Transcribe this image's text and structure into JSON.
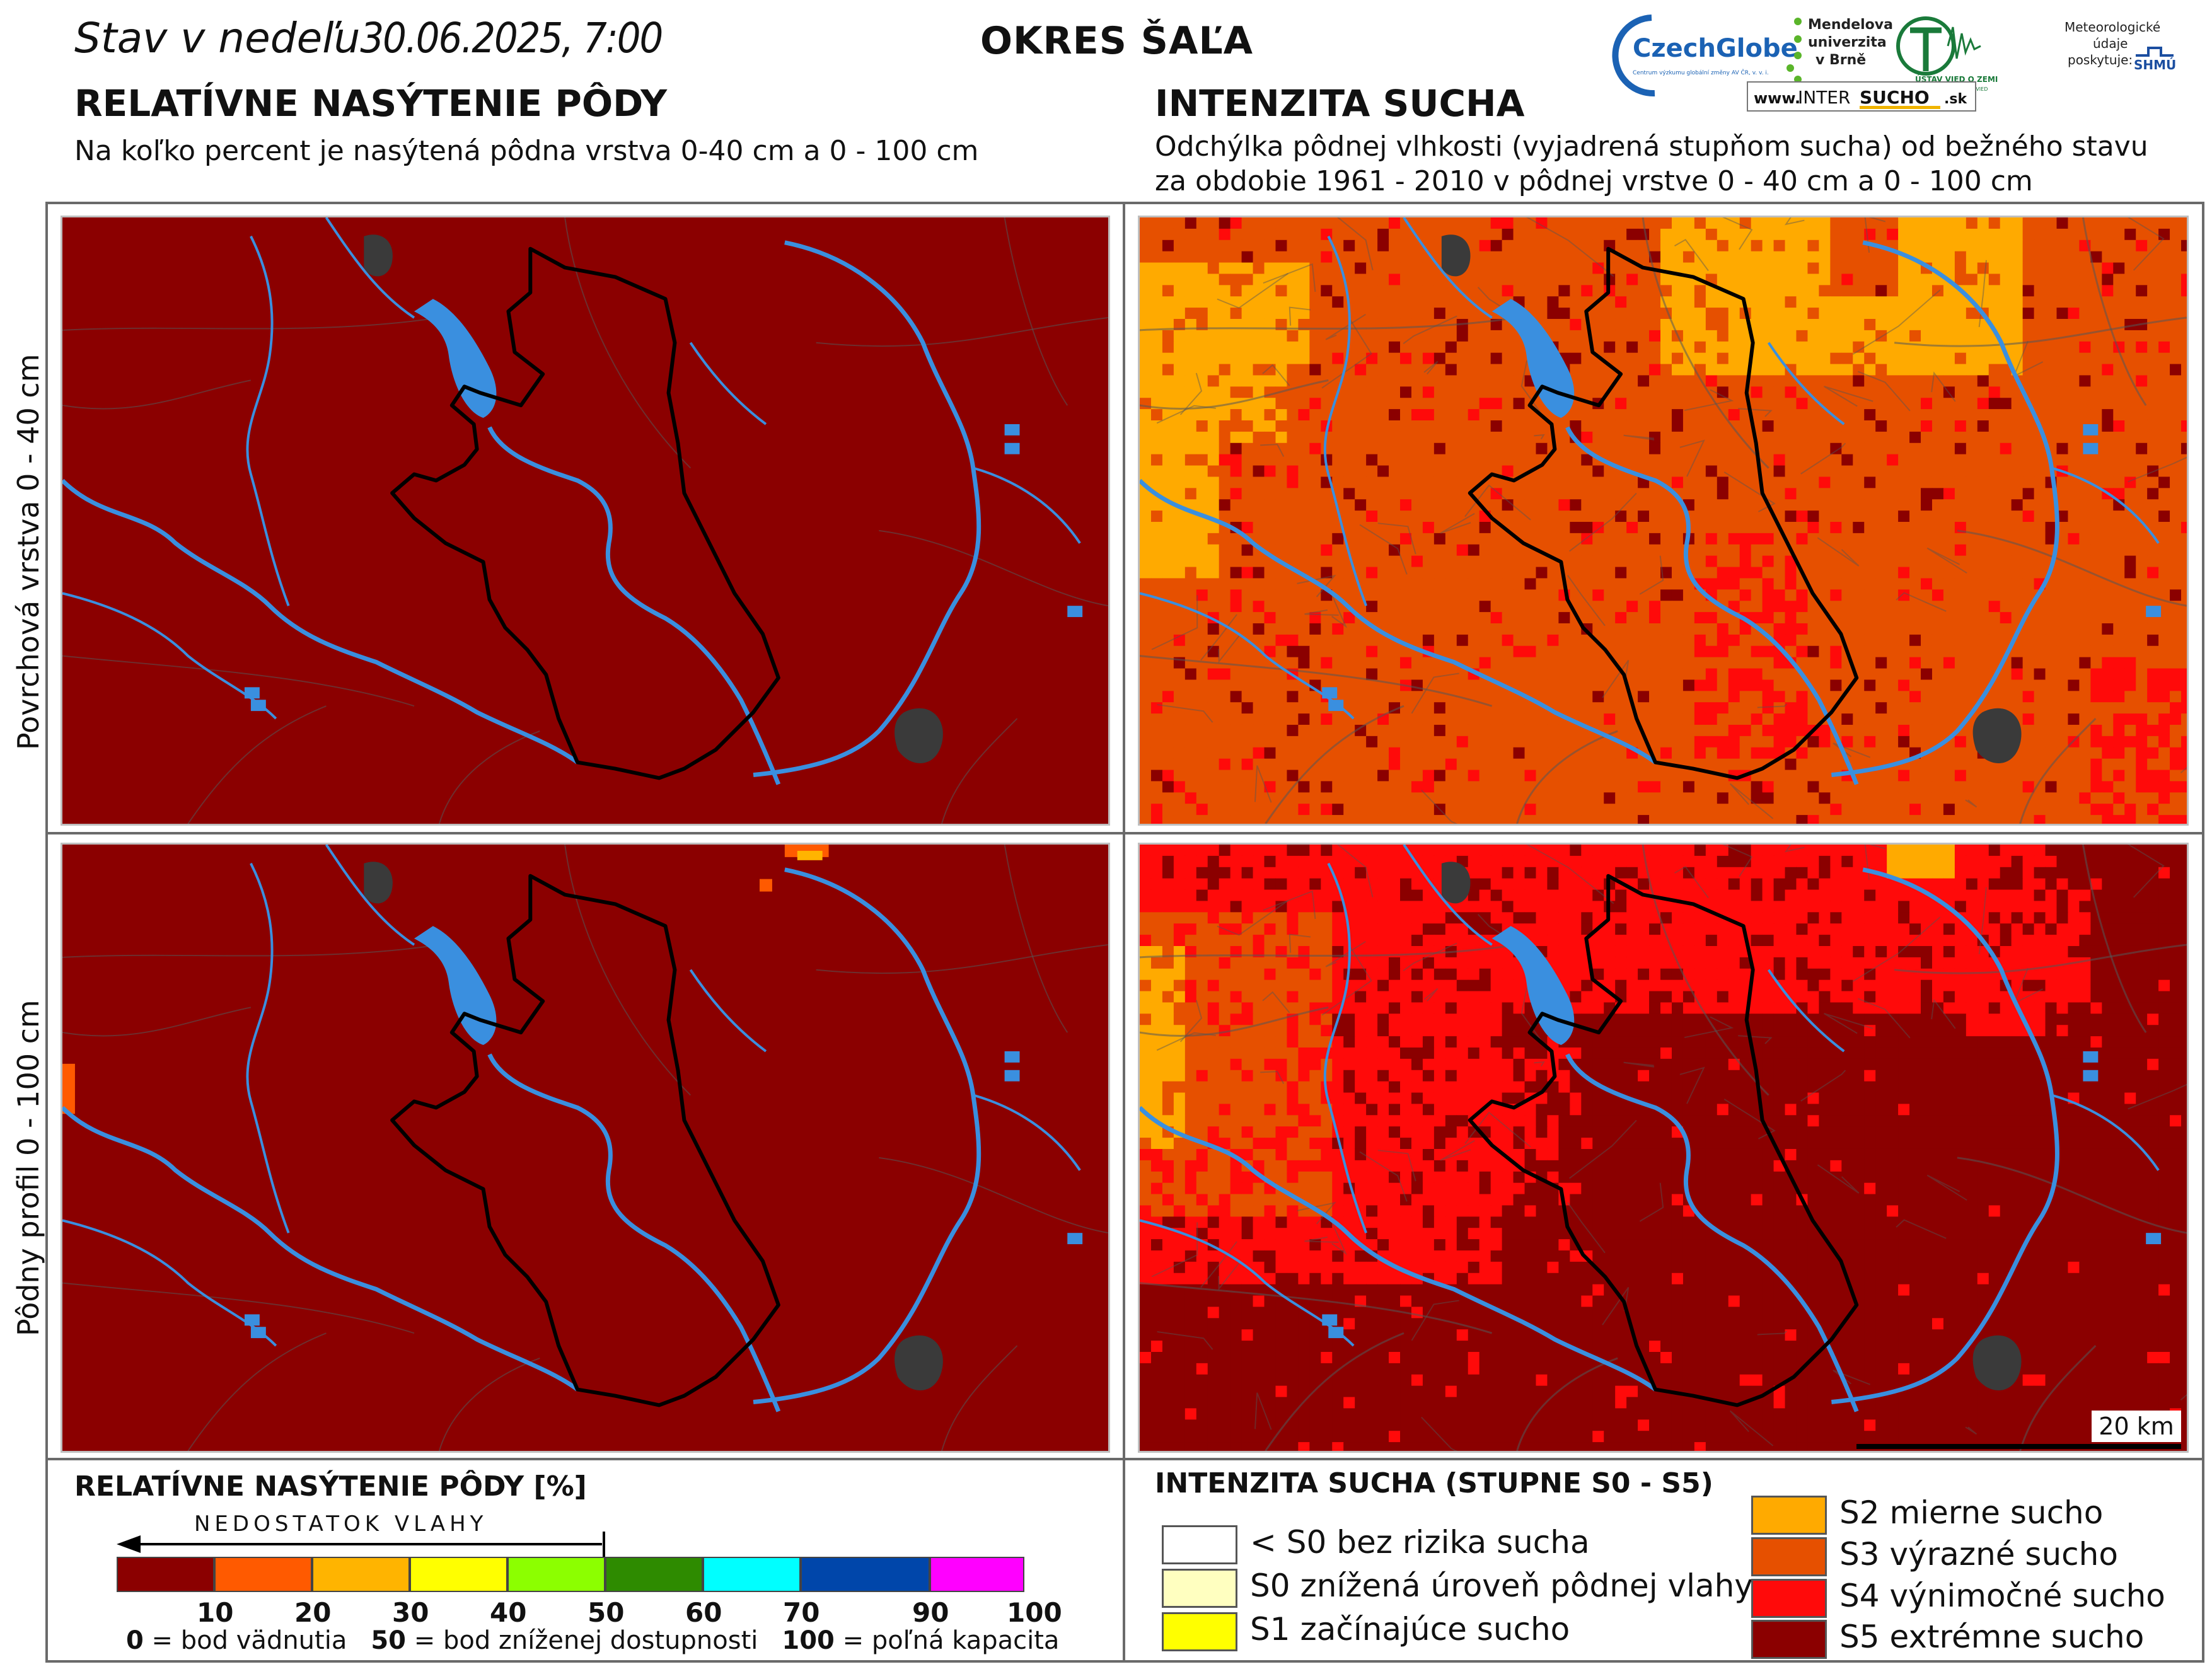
{
  "header": {
    "date_prefix": "Stav v nedeľu",
    "date_value": "30.06.2025, 7:00",
    "district": "OKRES ŠAĽA"
  },
  "left_section": {
    "title": "RELATÍVNE NASÝTENIE PÔDY",
    "subtitle": "Na koľko percent je nasýtená pôdna vrstva 0-40 cm a 0 - 100 cm"
  },
  "right_section": {
    "title": "INTENZITA SUCHA",
    "subtitle_line1": "Odchýlka pôdnej vlhkosti (vyjadrená stupňom sucha) od bežného stavu",
    "subtitle_line2": "za obdobie 1961 - 2010 v pôdnej vrstve 0 - 40 cm a 0 - 100 cm"
  },
  "row_labels": {
    "top": "Povrchová vrstva 0 - 40 cm",
    "bottom": "Pôdny profil 0 - 100 cm"
  },
  "logos": {
    "czechglobe": "CzechGlobe",
    "czechglobe_sub": "Centrum výzkumu globální změny AV ČR, v. v. i.",
    "mendelu_1": "Mendelova",
    "mendelu_2": "univerzita",
    "mendelu_3": "v Brně",
    "usvz_1": "ÚSTAV VIED O ZEMI",
    "usvz_2": "SLOVENSKEJ AKADÉMIE VIED",
    "meteo_1": "Meteorologické",
    "meteo_2": "údaje",
    "meteo_3": "poskytuje:",
    "shmu": "SHMÚ",
    "intersucho_prefix": "www.",
    "intersucho_a": "INTER",
    "intersucho_b": "SUCHO",
    "intersucho_c": ".sk"
  },
  "scale_bar": {
    "label": "20 km"
  },
  "saturation_legend": {
    "title": "RELATÍVNE NASÝTENIE PÔDY [%]",
    "arrow_label": "NEDOSTATOK VLAHY",
    "colors": [
      "#8b0000",
      "#ff5a00",
      "#ffb400",
      "#ffff00",
      "#8cff00",
      "#2e8b00",
      "#00ffff",
      "#0046aa",
      "#ff00ff"
    ],
    "ticks": [
      "10",
      "20",
      "30",
      "40",
      "50",
      "60",
      "70",
      "90",
      "100"
    ],
    "caption_0_num": "0",
    "caption_0_text": " = bod vädnutia",
    "caption_50_num": "50",
    "caption_50_text": " = bod zníženej dostupnosti",
    "caption_100_num": "100",
    "caption_100_text": " = poľná kapacita"
  },
  "drought_legend": {
    "title": "INTENZITA SUCHA (STUPNE S0 - S5)",
    "items": [
      {
        "label": "< S0 bez rizika sucha",
        "color": "#ffffff"
      },
      {
        "label": "S0 znížená úroveň pôdnej vlahy",
        "color": "#ffffc0"
      },
      {
        "label": "S1 začínajúce sucho",
        "color": "#ffff00"
      },
      {
        "label": "S2 mierne sucho",
        "color": "#ffaa00"
      },
      {
        "label": "S3 výrazné sucho",
        "color": "#e65000"
      },
      {
        "label": "S4 výnimočné sucho",
        "color": "#ff0a0a"
      },
      {
        "label": "S5 extrémne sucho",
        "color": "#8b0000"
      }
    ]
  },
  "map_colors": {
    "s5": "#8b0000",
    "s4": "#ff0a0a",
    "s3": "#e65000",
    "s2": "#ffaa00",
    "water": "#3a8fdf",
    "city": "#3a3a3a",
    "border": "#000000"
  }
}
